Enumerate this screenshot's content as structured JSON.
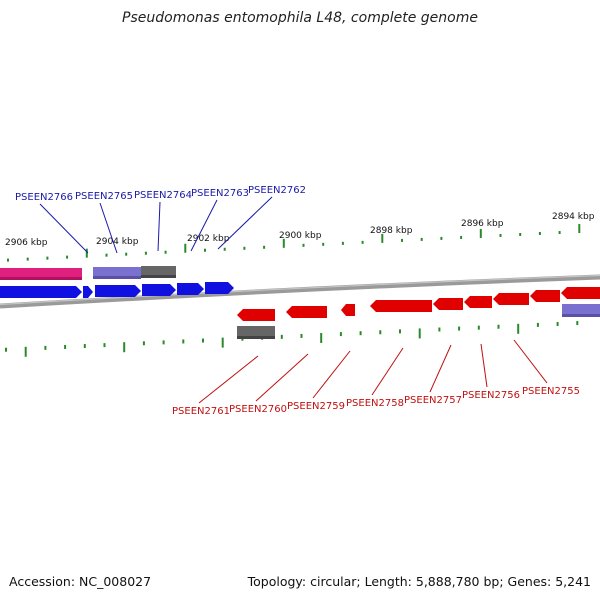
{
  "title": "Pseudomonas entomophila L48, complete genome",
  "footer": {
    "accession": "Accession: NC_008027",
    "summary": "Topology: circular; Length: 5,888,780 bp; Genes: 5,241"
  },
  "colors": {
    "forward_gene": "#1010e0",
    "reverse_gene": "#e00000",
    "pink_feature": "#e0207f",
    "gray_feature": "#666666",
    "purple_feature": "#7a70d0",
    "tick": "#2a8a2a",
    "backbone": "#8a8a8a",
    "forward_label": "#1a1aa8",
    "reverse_label": "#c01010"
  },
  "scale_labels": [
    "2906 kbp",
    "2904 kbp",
    "2902 kbp",
    "2900 kbp",
    "2898 kbp",
    "2896 kbp",
    "2894 kbp"
  ],
  "forward_genes": [
    "PSEEN2766",
    "PSEEN2765",
    "PSEEN2764",
    "PSEEN2763",
    "PSEEN2762"
  ],
  "reverse_genes": [
    "PSEEN2761",
    "PSEEN2760",
    "PSEEN2759",
    "PSEEN2758",
    "PSEEN2757",
    "PSEEN2756",
    "PSEEN2755"
  ]
}
